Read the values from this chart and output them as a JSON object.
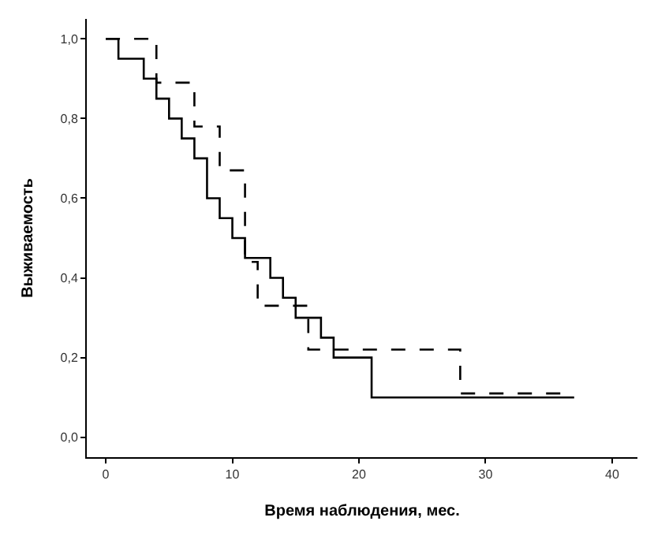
{
  "chart_data": {
    "type": "step",
    "xlabel": "Время наблюдения, мес.",
    "ylabel": "Выживаемость",
    "series": [
      {
        "color": "#000000",
        "line_style": "solid",
        "x": [
          0,
          1,
          3,
          4,
          5,
          6,
          7,
          8,
          9,
          10,
          11,
          13,
          14,
          15,
          17,
          18,
          21,
          37
        ],
        "values": [
          1.0,
          0.95,
          0.9,
          0.85,
          0.8,
          0.75,
          0.7,
          0.6,
          0.55,
          0.5,
          0.45,
          0.4,
          0.35,
          0.3,
          0.25,
          0.2,
          0.1,
          0.1
        ]
      },
      {
        "color": "#000000",
        "line_style": "dashed",
        "x": [
          0,
          4,
          7,
          9,
          11,
          12,
          16,
          28,
          37
        ],
        "values": [
          1.0,
          0.89,
          0.78,
          0.67,
          0.44,
          0.33,
          0.22,
          0.11,
          0.11
        ]
      }
    ],
    "xlim": [
      -1.5,
      42
    ],
    "xticks": [
      0,
      10,
      20,
      30,
      40
    ],
    "ylim": [
      -0.05,
      1.05
    ],
    "yticks": [
      {
        "value": 0,
        "label": "0,0"
      },
      {
        "value": 0.2,
        "label": "0,2"
      },
      {
        "value": 0.4,
        "label": "0,4"
      },
      {
        "value": 0.6,
        "label": "0,6"
      },
      {
        "value": 0.8,
        "label": "0,8"
      },
      {
        "value": 1,
        "label": "1,0"
      }
    ],
    "marker": "none"
  }
}
